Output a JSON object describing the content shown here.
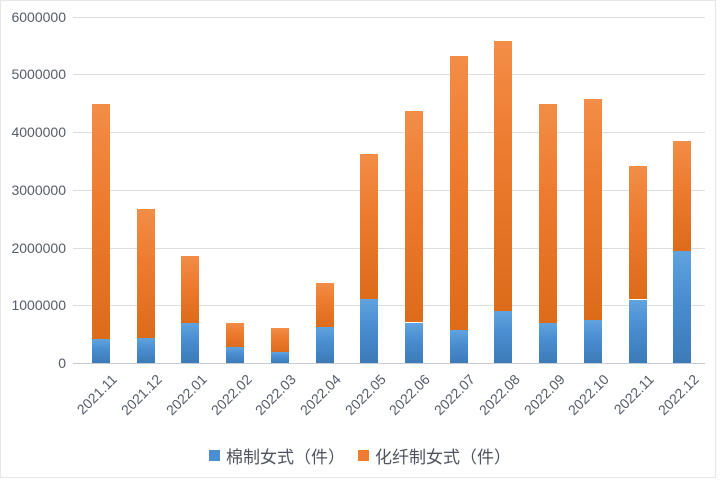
{
  "chart_data": {
    "type": "bar",
    "stacked": true,
    "title": "",
    "xlabel": "",
    "ylabel": "",
    "categories": [
      "2021.11",
      "2021.12",
      "2022.01",
      "2022.02",
      "2022.03",
      "2022.04",
      "2022.05",
      "2022.06",
      "2022.07",
      "2022.08",
      "2022.09",
      "2022.10",
      "2022.11",
      "2022.12"
    ],
    "series": [
      {
        "name": "棉制女式（件）",
        "color": "#4a8fd2",
        "values": [
          420000,
          440000,
          700000,
          270000,
          190000,
          630000,
          1110000,
          700000,
          570000,
          900000,
          690000,
          740000,
          1100000,
          1940000
        ]
      },
      {
        "name": "化纤制女式（件）",
        "color": "#ed7c30",
        "values": [
          4060000,
          2230000,
          1150000,
          430000,
          420000,
          760000,
          2510000,
          3670000,
          4740000,
          4670000,
          3800000,
          3840000,
          2310000,
          1910000
        ]
      }
    ],
    "totals": [
      4480000,
      2670000,
      1850000,
      700000,
      610000,
      1390000,
      3620000,
      4370000,
      5310000,
      5570000,
      4490000,
      4580000,
      3410000,
      3850000
    ],
    "ylim": [
      0,
      6000000
    ],
    "y_tick_values": [
      0,
      1000000,
      2000000,
      3000000,
      4000000,
      5000000,
      6000000
    ],
    "y_tick_labels": [
      "0",
      "1000000",
      "2000000",
      "3000000",
      "4000000",
      "5000000",
      "6000000"
    ],
    "grid": true,
    "legend_position": "bottom"
  },
  "colors": {
    "series_blue": "#4a8fd2",
    "series_orange": "#ed7c30",
    "gridline": "#dadde2",
    "axis_text": "#555c68",
    "frame_border": "#e4e6e9",
    "background": "#ffffff"
  }
}
